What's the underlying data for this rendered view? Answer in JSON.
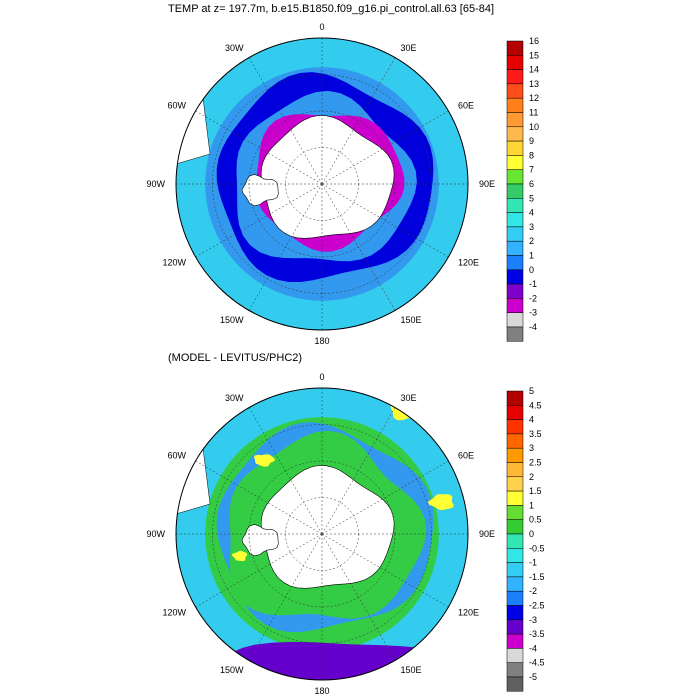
{
  "panels": [
    {
      "id": "temp",
      "title": "TEMP at z= 197.7m, b.e15.B1850.f09_g16.pi_control.all.63 [65-84]",
      "lon_labels": [
        "0",
        "30E",
        "60E",
        "90E",
        "120E",
        "150E",
        "180",
        "150W",
        "120W",
        "90W",
        "60W",
        "30W"
      ],
      "colorbar": {
        "levels": [
          "16",
          "15",
          "14",
          "13",
          "12",
          "11",
          "10",
          "9",
          "8",
          "7",
          "6",
          "5",
          "4",
          "3",
          "2",
          "1",
          "0",
          "-1",
          "-2",
          "-3",
          "-4"
        ],
        "colors": [
          "#b30000",
          "#e60000",
          "#ff1a1a",
          "#ff4d1a",
          "#ff7f1a",
          "#ff9933",
          "#ffb84d",
          "#ffd633",
          "#ffff33",
          "#66e633",
          "#33cc66",
          "#33e6b3",
          "#33e6e6",
          "#33ccf2",
          "#33b3ff",
          "#1a80ff",
          "#0000e6",
          "#8000cc",
          "#cc00cc",
          "#d9d9d9",
          "#808080"
        ]
      },
      "fill": {
        "ocean_main": "#3399ee",
        "ocean_outer": "#33ccee",
        "rim_band": "#0000dd",
        "shelf": "#cc00cc",
        "land": "#ffffff"
      }
    },
    {
      "id": "diff",
      "title": "(MODEL - LEVITUS/PHC2)",
      "lon_labels": [
        "0",
        "30E",
        "60E",
        "90E",
        "120E",
        "150E",
        "180",
        "150W",
        "120W",
        "90W",
        "60W",
        "30W"
      ],
      "colorbar": {
        "levels": [
          "5",
          "4.5",
          "4",
          "3.5",
          "3",
          "2.5",
          "2",
          "1.5",
          "1",
          "0.5",
          "0",
          "-0.5",
          "-1",
          "-1.5",
          "-2",
          "-2.5",
          "-3",
          "-3.5",
          "-4",
          "-4.5",
          "-5"
        ],
        "colors": [
          "#b30000",
          "#e60000",
          "#ff3300",
          "#ff6600",
          "#ff9900",
          "#ffb833",
          "#ffd24d",
          "#ffff33",
          "#66dd33",
          "#33cc33",
          "#33e6b3",
          "#33e6e6",
          "#33ccf2",
          "#33b3ff",
          "#1a80ff",
          "#0000e6",
          "#6600cc",
          "#cc00cc",
          "#d9d9d9",
          "#808080",
          "#606060"
        ]
      },
      "fill": {
        "ocean_main": "#33cc44",
        "ocean_outer": "#33ccee",
        "rim_band": "#3399ee",
        "shelf": "#33cc44",
        "land": "#ffffff",
        "warm_patch": "#ffff33",
        "cold_patch": "#6600cc"
      }
    }
  ]
}
